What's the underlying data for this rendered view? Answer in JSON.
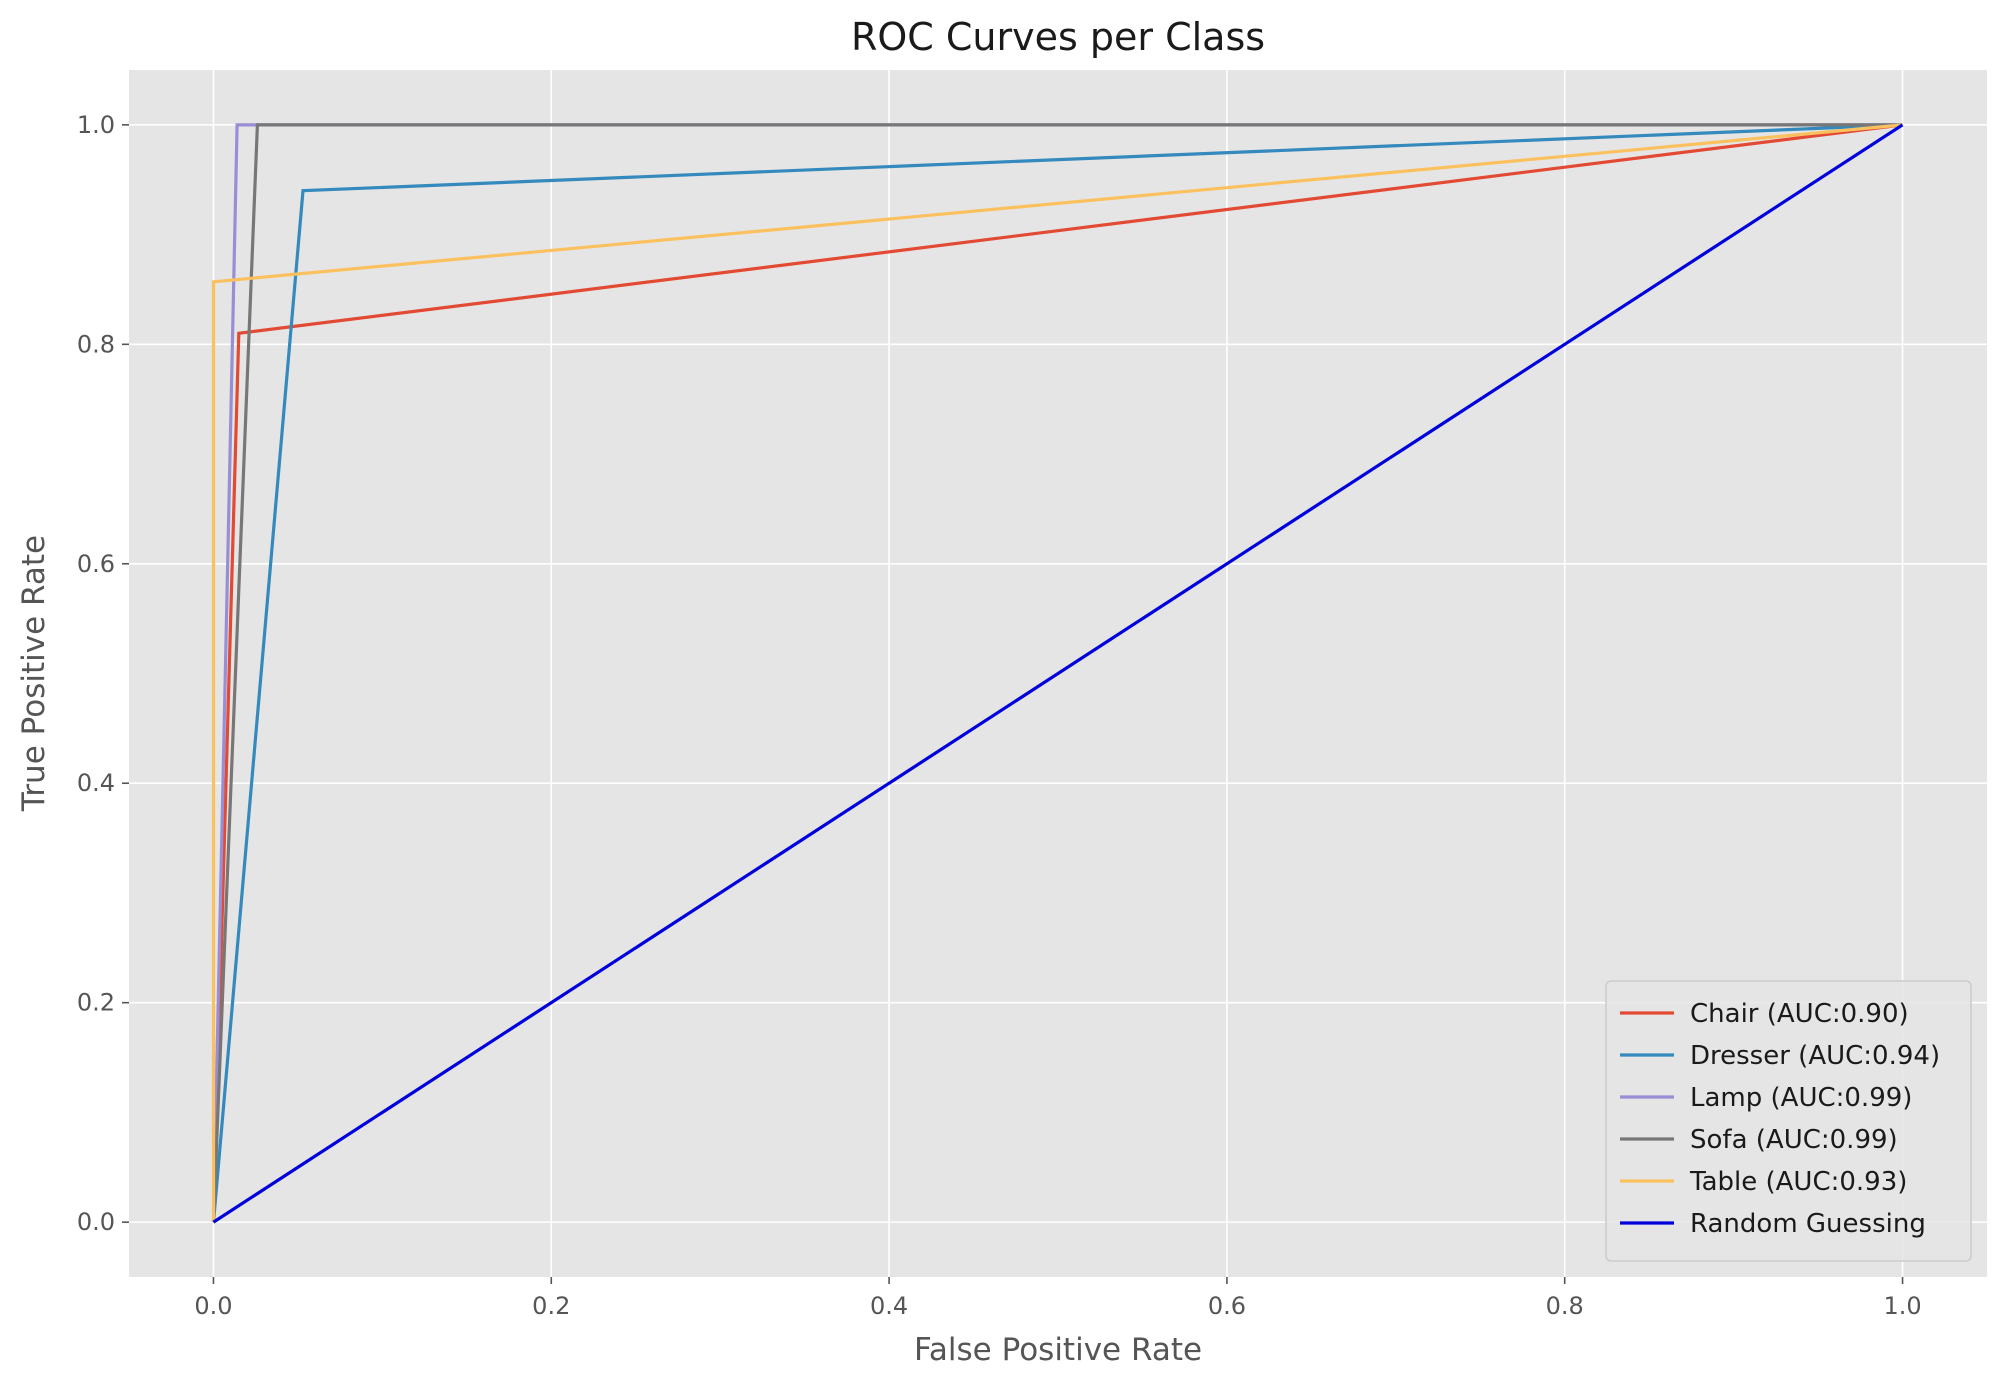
{
  "chart_data": {
    "type": "line",
    "title": "ROC Curves per Class",
    "xlabel": "False Positive Rate",
    "ylabel": "True Positive Rate",
    "xlim": [
      -0.05,
      1.05
    ],
    "ylim": [
      -0.05,
      1.05
    ],
    "xticks": [
      0.0,
      0.2,
      0.4,
      0.6,
      0.8,
      1.0
    ],
    "yticks": [
      0.0,
      0.2,
      0.4,
      0.6,
      0.8,
      1.0
    ],
    "xtick_labels": [
      "0.0",
      "0.2",
      "0.4",
      "0.6",
      "0.8",
      "1.0"
    ],
    "ytick_labels": [
      "0.0",
      "0.2",
      "0.4",
      "0.6",
      "0.8",
      "1.0"
    ],
    "grid": true,
    "legend_position": "lower-right",
    "series": [
      {
        "name": "Chair (AUC:0.90)",
        "color": "#E24A33",
        "x": [
          0.0,
          0.015,
          1.0
        ],
        "y": [
          0.0,
          0.81,
          1.0
        ]
      },
      {
        "name": "Dresser (AUC:0.94)",
        "color": "#348ABD",
        "x": [
          0.0,
          0.053,
          1.0
        ],
        "y": [
          0.0,
          0.94,
          1.0
        ]
      },
      {
        "name": "Lamp (AUC:0.99)",
        "color": "#988ED5",
        "x": [
          0.0,
          0.014,
          1.0
        ],
        "y": [
          0.0,
          1.0,
          1.0
        ]
      },
      {
        "name": "Sofa (AUC:0.99)",
        "color": "#777777",
        "x": [
          0.0,
          0.026,
          1.0
        ],
        "y": [
          0.0,
          1.0,
          1.0
        ]
      },
      {
        "name": "Table (AUC:0.93)",
        "color": "#FBC15E",
        "x": [
          0.0,
          0.0,
          1.0
        ],
        "y": [
          0.0,
          0.857,
          1.0
        ]
      },
      {
        "name": "Random Guessing",
        "color": "#0000DD",
        "x": [
          0.0,
          1.0
        ],
        "y": [
          0.0,
          1.0
        ]
      }
    ]
  }
}
